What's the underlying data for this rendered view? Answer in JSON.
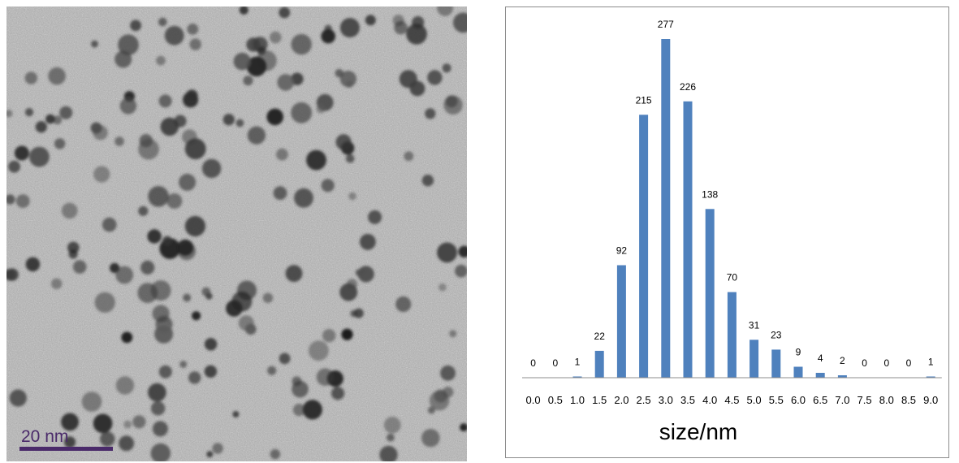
{
  "micrograph": {
    "scale_bar_label": "20 nm",
    "scale_bar_color": "#4a2a6a"
  },
  "chart_data": {
    "type": "bar",
    "categories": [
      "0.0",
      "0.5",
      "1.0",
      "1.5",
      "2.0",
      "2.5",
      "3.0",
      "3.5",
      "4.0",
      "4.5",
      "5.0",
      "5.5",
      "6.0",
      "6.5",
      "7.0",
      "7.5",
      "8.0",
      "8.5",
      "9.0"
    ],
    "values": [
      0,
      0,
      1,
      22,
      92,
      215,
      277,
      226,
      138,
      70,
      31,
      23,
      9,
      4,
      2,
      0,
      0,
      0,
      1
    ],
    "xlabel": "size/nm",
    "ylabel": "",
    "bar_color": "#4f81bd",
    "data_labels": true,
    "grid": false,
    "legend": "none"
  }
}
